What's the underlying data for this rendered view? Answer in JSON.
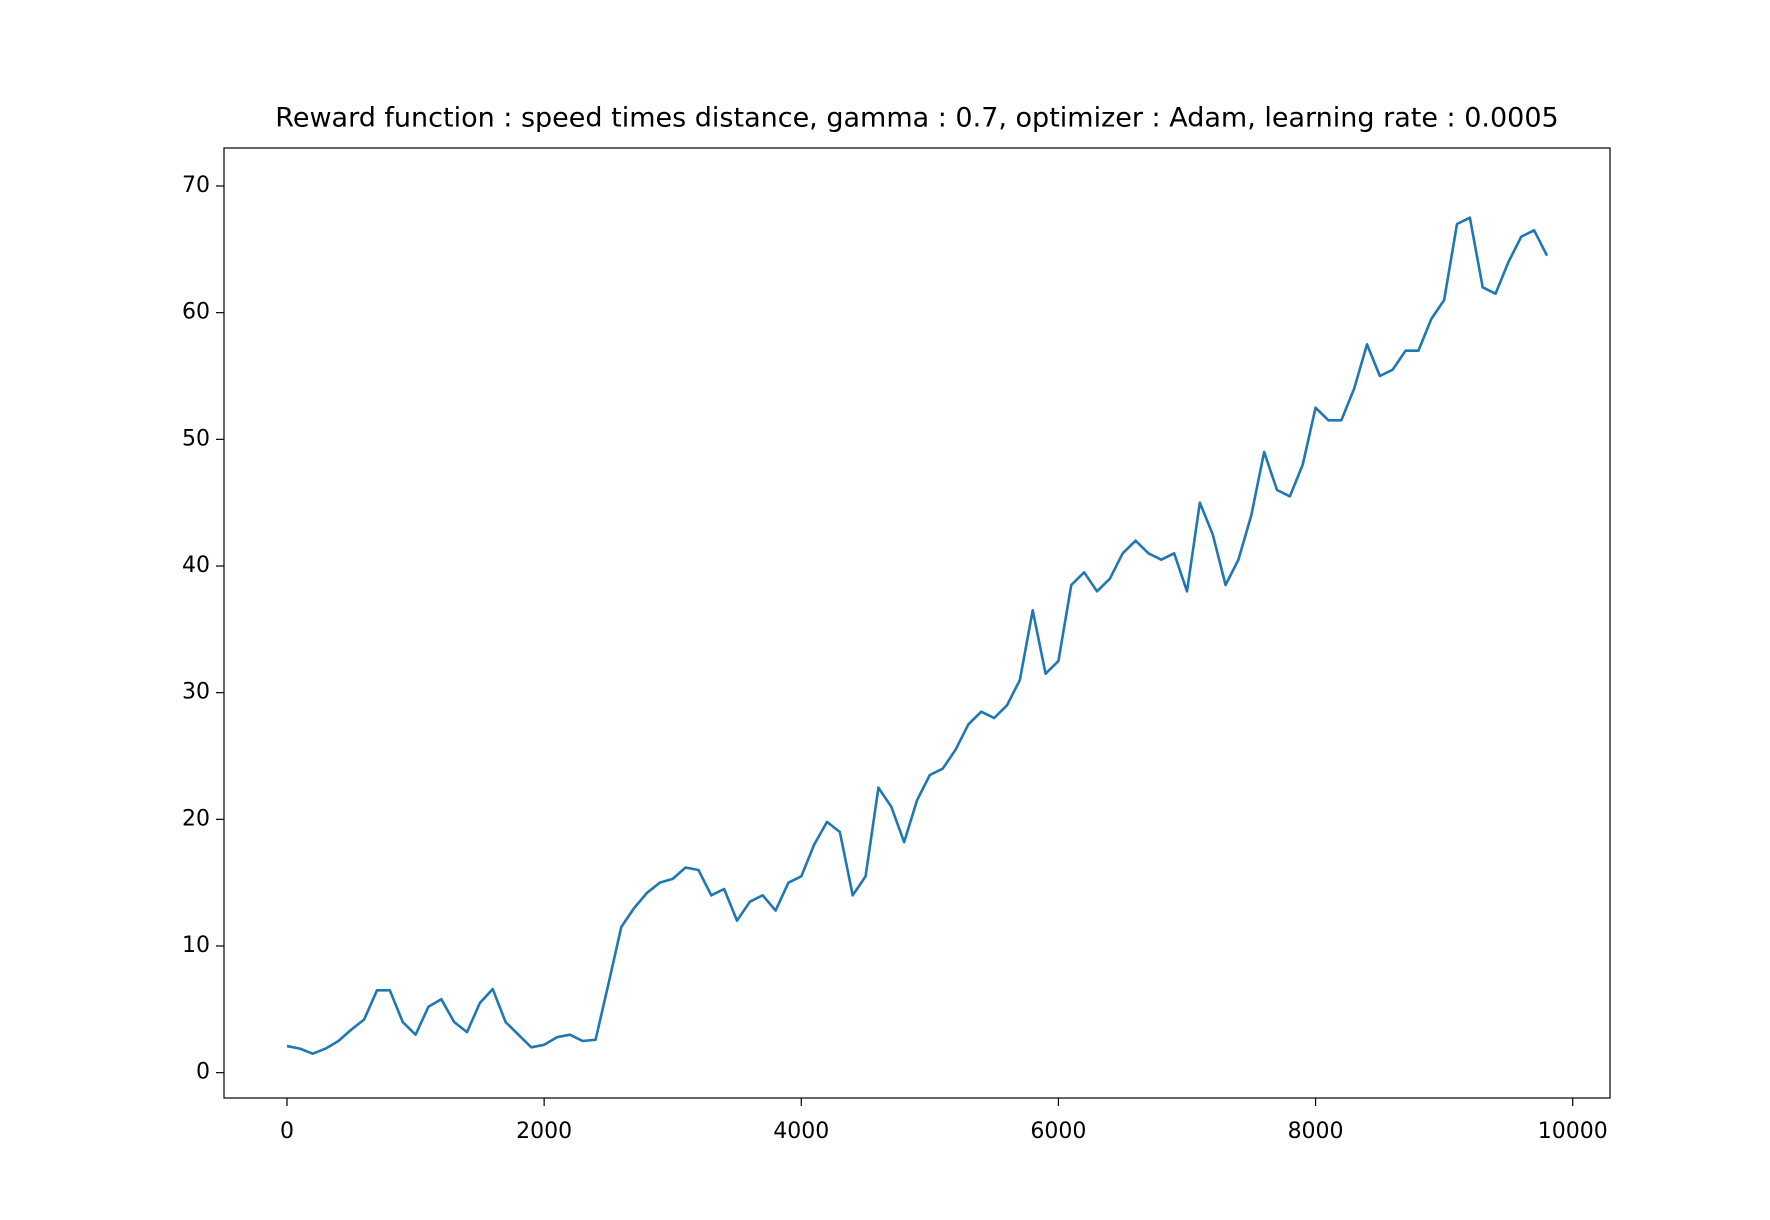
{
  "chart_data": {
    "type": "line",
    "title": "Reward function : speed times distance, gamma : 0.7, optimizer : Adam, learning rate : 0.0005",
    "x": [
      0,
      100,
      200,
      300,
      400,
      500,
      600,
      700,
      800,
      900,
      1000,
      1100,
      1200,
      1300,
      1400,
      1500,
      1600,
      1700,
      1800,
      1900,
      2000,
      2100,
      2200,
      2300,
      2400,
      2500,
      2600,
      2700,
      2800,
      2900,
      3000,
      3100,
      3200,
      3300,
      3400,
      3500,
      3600,
      3700,
      3800,
      3900,
      4000,
      4100,
      4200,
      4300,
      4400,
      4500,
      4600,
      4700,
      4800,
      4900,
      5000,
      5100,
      5200,
      5300,
      5400,
      5500,
      5600,
      5700,
      5800,
      5900,
      6000,
      6100,
      6200,
      6300,
      6400,
      6500,
      6600,
      6700,
      6800,
      6900,
      7000,
      7100,
      7200,
      7300,
      7400,
      7500,
      7600,
      7700,
      7800,
      7900,
      8000,
      8100,
      8200,
      8300,
      8400,
      8500,
      8600,
      8700,
      8800,
      8900,
      9000,
      9100,
      9200,
      9300,
      9400,
      9500,
      9600,
      9700,
      9800
    ],
    "series": [
      {
        "color": "#1f77b4",
        "values": [
          2.1,
          1.9,
          1.5,
          1.9,
          2.5,
          3.4,
          4.2,
          6.5,
          6.5,
          4.0,
          3.0,
          5.2,
          5.8,
          4.0,
          3.2,
          5.5,
          6.6,
          4.0,
          3.0,
          2.0,
          2.2,
          2.8,
          3.0,
          2.5,
          2.6,
          7.0,
          11.5,
          13.0,
          14.2,
          15.0,
          15.3,
          16.2,
          16.0,
          14.0,
          14.5,
          12.0,
          13.5,
          14.0,
          12.8,
          15.0,
          15.5,
          18.0,
          19.8,
          19.0,
          14.0,
          15.5,
          22.5,
          21.0,
          18.2,
          21.5,
          23.5,
          24.0,
          25.5,
          27.5,
          28.5,
          28.0,
          29.0,
          31.0,
          36.5,
          31.5,
          32.5,
          38.5,
          39.5,
          38.0,
          39.0,
          41.0,
          42.0,
          41.0,
          40.5,
          41.0,
          38.0,
          45.0,
          42.5,
          38.5,
          40.5,
          44.0,
          49.0,
          46.0,
          45.5,
          48.0,
          52.5,
          51.5,
          51.5,
          54.0,
          57.5,
          55.0,
          55.5,
          57.0,
          57.0,
          59.5,
          61.0,
          67.0,
          67.5,
          62.0,
          61.5,
          64.0,
          66.0,
          66.5,
          64.5
        ]
      }
    ],
    "xlim": [
      -490,
      10290
    ],
    "ylim": [
      -2,
      73
    ],
    "xticks": [
      0,
      2000,
      4000,
      6000,
      8000,
      10000
    ],
    "yticks": [
      0,
      10,
      20,
      30,
      40,
      50,
      60,
      70
    ]
  }
}
